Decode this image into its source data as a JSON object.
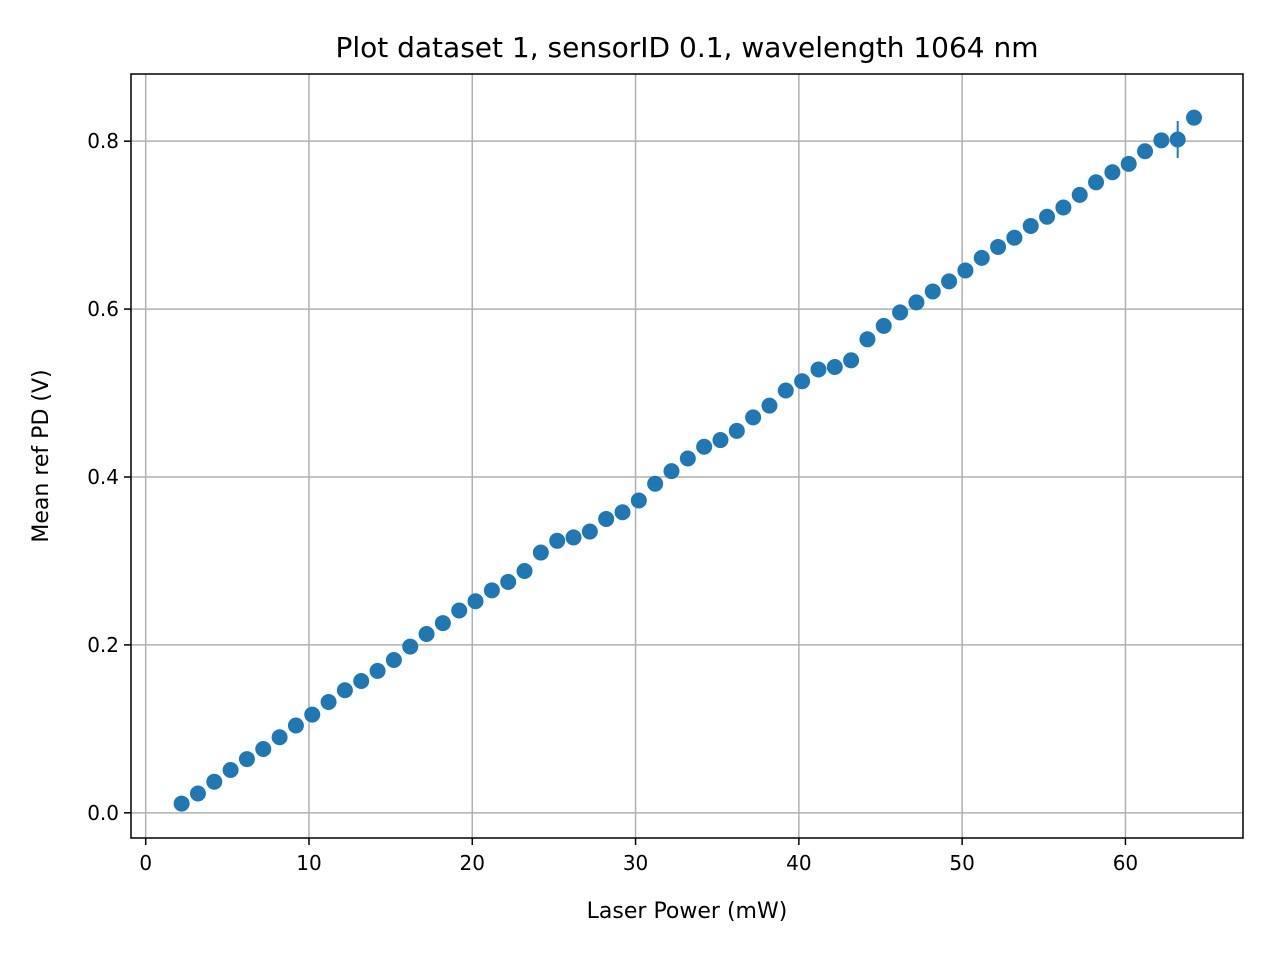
{
  "chart_data": {
    "type": "scatter",
    "title": "Plot dataset 1, sensorID 0.1, wavelength 1064 nm",
    "xlabel": "Laser Power (mW)",
    "ylabel": "Mean ref PD (V)",
    "xlim": [
      -0.9,
      67.2
    ],
    "ylim": [
      -0.03,
      0.88
    ],
    "xticks": [
      0,
      10,
      20,
      30,
      40,
      50,
      60
    ],
    "xtick_labels": [
      "0",
      "10",
      "20",
      "30",
      "40",
      "50",
      "60"
    ],
    "yticks": [
      0.0,
      0.2,
      0.4,
      0.6,
      0.8
    ],
    "ytick_labels": [
      "0.0",
      "0.2",
      "0.4",
      "0.6",
      "0.8"
    ],
    "grid": true,
    "marker_color": "#1f77b4",
    "series": [
      {
        "x": [
          2.2,
          3.2,
          4.2,
          5.2,
          6.2,
          7.2,
          8.2,
          9.2,
          10.2,
          11.2,
          12.2,
          13.2,
          14.2,
          15.2,
          16.2,
          17.2,
          18.2,
          19.2,
          20.2,
          21.2,
          22.2,
          23.2,
          24.2,
          25.2,
          26.2,
          27.2,
          28.2,
          29.2,
          30.2,
          31.2,
          32.2,
          33.2,
          34.2,
          35.2,
          36.2,
          37.2,
          38.2,
          39.2,
          40.2,
          41.2,
          42.2,
          43.2,
          44.2,
          45.2,
          46.2,
          47.2,
          48.2,
          49.2,
          50.2,
          51.2,
          52.2,
          53.2,
          54.2,
          55.2,
          56.2,
          57.2,
          58.2,
          59.2,
          60.2,
          61.2,
          62.2,
          63.2,
          64.2
        ],
        "y": [
          0.011,
          0.023,
          0.037,
          0.051,
          0.064,
          0.076,
          0.09,
          0.104,
          0.117,
          0.132,
          0.146,
          0.157,
          0.169,
          0.182,
          0.198,
          0.213,
          0.226,
          0.241,
          0.252,
          0.265,
          0.275,
          0.288,
          0.31,
          0.324,
          0.328,
          0.335,
          0.35,
          0.358,
          0.372,
          0.392,
          0.407,
          0.422,
          0.436,
          0.444,
          0.455,
          0.471,
          0.485,
          0.503,
          0.514,
          0.528,
          0.531,
          0.539,
          0.564,
          0.58,
          0.596,
          0.608,
          0.621,
          0.633,
          0.646,
          0.661,
          0.674,
          0.685,
          0.699,
          0.71,
          0.721,
          0.736,
          0.751,
          0.763,
          0.773,
          0.788,
          0.801,
          0.802,
          0.828
        ],
        "yerr": [
          0.002,
          0.002,
          0.002,
          0.002,
          0.002,
          0.002,
          0.002,
          0.002,
          0.002,
          0.002,
          0.002,
          0.002,
          0.002,
          0.002,
          0.002,
          0.002,
          0.002,
          0.002,
          0.002,
          0.002,
          0.002,
          0.002,
          0.002,
          0.002,
          0.002,
          0.002,
          0.002,
          0.002,
          0.002,
          0.002,
          0.002,
          0.002,
          0.002,
          0.002,
          0.002,
          0.002,
          0.002,
          0.002,
          0.002,
          0.002,
          0.002,
          0.002,
          0.002,
          0.002,
          0.002,
          0.002,
          0.002,
          0.002,
          0.002,
          0.002,
          0.002,
          0.002,
          0.002,
          0.002,
          0.002,
          0.002,
          0.002,
          0.002,
          0.002,
          0.002,
          0.002,
          0.022,
          0.002
        ]
      }
    ]
  }
}
